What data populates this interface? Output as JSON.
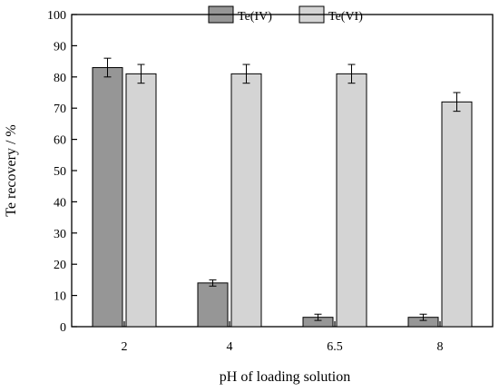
{
  "chart_data": {
    "type": "bar",
    "xlabel": "pH of loading solution",
    "ylabel": "Te recovery / %",
    "ylim": [
      0,
      100
    ],
    "yticks": [
      0,
      10,
      20,
      30,
      40,
      50,
      60,
      70,
      80,
      90,
      100
    ],
    "categories": [
      "2",
      "4",
      "6.5",
      "8"
    ],
    "series": [
      {
        "name": "Te(IV)",
        "color": "#969696",
        "values": [
          83,
          14,
          3,
          3
        ],
        "errors": [
          3,
          1,
          1,
          1
        ]
      },
      {
        "name": "Te(VI)",
        "color": "#d4d4d4",
        "values": [
          81,
          81,
          81,
          72
        ],
        "errors": [
          3,
          3,
          3,
          3
        ]
      }
    ],
    "legend_position": "top",
    "grid": false
  }
}
